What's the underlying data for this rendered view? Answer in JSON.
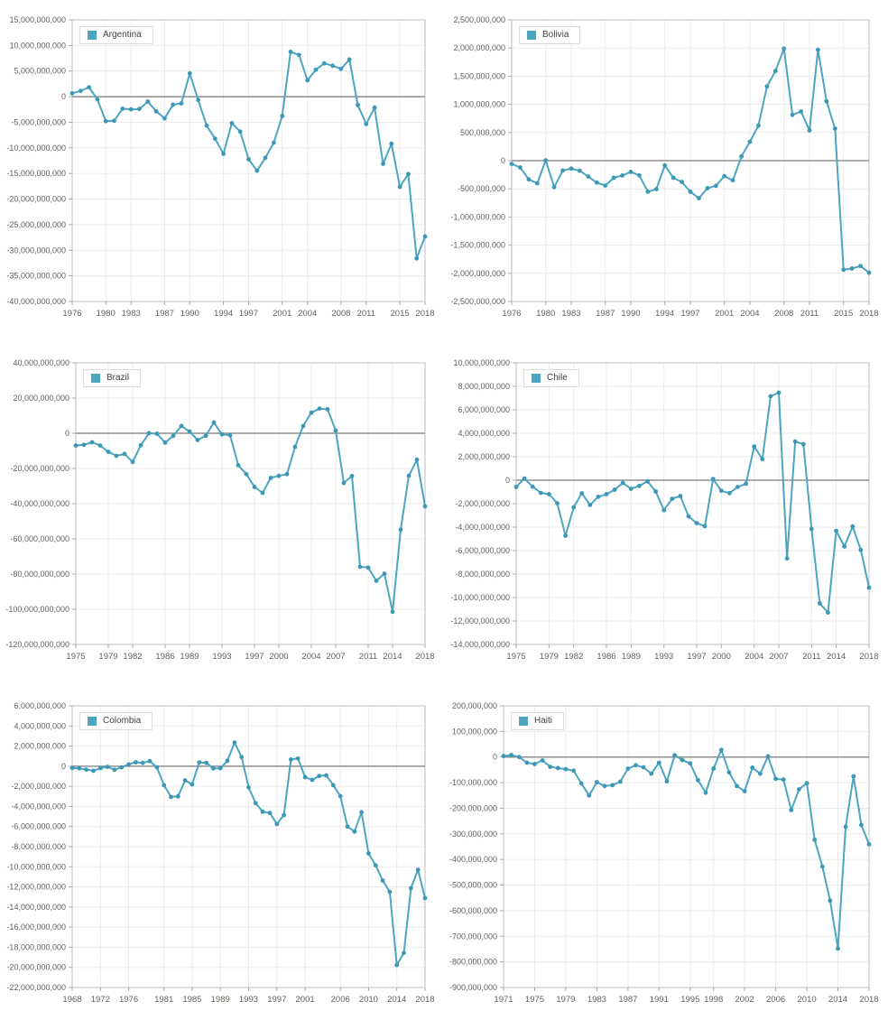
{
  "page": {
    "background": "#ffffff"
  },
  "style": {
    "grid_color": "#ebebeb",
    "frame_color": "#c8c8c8",
    "zero_line_color": "#8f8f8f",
    "tick_mark_color": "#a8a8a8",
    "tick_text_color": "#63605a",
    "legend_border_color": "#dddddd"
  },
  "chart_data": [
    {
      "type": "line",
      "legend": "Argentina",
      "series_color": "#4da5c0",
      "point_color": "#3c98b5",
      "unit_multiplier": 1000000,
      "start_year": 1976,
      "end_year": 2018,
      "x_tick_years": [
        1976,
        1980,
        1983,
        1987,
        1990,
        1994,
        1997,
        2001,
        2004,
        2008,
        2011,
        2015,
        2018
      ],
      "y_min_millions": -40000,
      "y_max_millions": 15000,
      "y_step_millions": 5000,
      "values_millions": [
        650,
        1126,
        1834,
        -537,
        -4774,
        -4712,
        -2353,
        -2461,
        -2391,
        -952,
        -2859,
        -4238,
        -1572,
        -1305,
        4552,
        -647,
        -5659,
        -8206,
        -11158,
        -5175,
        -6822,
        -12213,
        -14482,
        -11943,
        -8981,
        -3780,
        8767,
        8140,
        3212,
        5274,
        6499,
        6048,
        5421,
        7254,
        -1623,
        -5340,
        -2138,
        -13124,
        -9179,
        -17622,
        -15105,
        -31598,
        -27296
      ]
    },
    {
      "type": "line",
      "legend": "Bolivia",
      "series_color": "#4da5c0",
      "point_color": "#3c98b5",
      "unit_multiplier": 1000000,
      "start_year": 1976,
      "end_year": 2018,
      "x_tick_years": [
        1976,
        1980,
        1983,
        1987,
        1990,
        1994,
        1997,
        2001,
        2004,
        2008,
        2011,
        2015,
        2018
      ],
      "y_min_millions": -2500,
      "y_max_millions": 2500,
      "y_step_millions": 500,
      "values_millions": [
        -58,
        -120,
        -332,
        -402,
        6,
        -470,
        -174,
        -141,
        -179,
        -282,
        -389,
        -443,
        -304,
        -263,
        -199,
        -262,
        -552,
        -505,
        -84,
        -303,
        -379,
        -552,
        -666,
        -488,
        -446,
        -274,
        -350,
        76,
        337,
        622,
        1318,
        1591,
        1991,
        813,
        873,
        537,
        1970,
        1054,
        570,
        -1936,
        -1915,
        -1870,
        -1990
      ]
    },
    {
      "type": "line",
      "legend": "Brazil",
      "series_color": "#4da5c0",
      "point_color": "#3c98b5",
      "unit_multiplier": 1000000,
      "start_year": 1975,
      "end_year": 2018,
      "x_tick_years": [
        1975,
        1979,
        1982,
        1986,
        1989,
        1993,
        1997,
        2000,
        2004,
        2007,
        2011,
        2014,
        2018
      ],
      "y_min_millions": -120000,
      "y_max_millions": 40000,
      "y_step_millions": 20000,
      "values_millions": [
        -6999,
        -6551,
        -5106,
        -6983,
        -10497,
        -12831,
        -11751,
        -16312,
        -6837,
        42,
        -273,
        -5323,
        -1438,
        4175,
        1033,
        -3823,
        -1450,
        6089,
        -592,
        -1153,
        -18136,
        -23248,
        -30491,
        -33829,
        -25335,
        -24225,
        -23215,
        -7637,
        4177,
        11679,
        13985,
        13643,
        1551,
        -28192,
        -24302,
        -75824,
        -76288,
        -83800,
        -79792,
        -101431,
        -54789,
        -24230,
        -15015,
        -41540
      ]
    },
    {
      "type": "line",
      "legend": "Chile",
      "series_color": "#4da5c0",
      "point_color": "#3c98b5",
      "unit_multiplier": 1000000,
      "start_year": 1975,
      "end_year": 2018,
      "x_tick_years": [
        1975,
        1979,
        1982,
        1986,
        1989,
        1993,
        1997,
        2000,
        2004,
        2007,
        2011,
        2014,
        2018
      ],
      "y_min_millions": -14000,
      "y_max_millions": 10000,
      "y_step_millions": 2000,
      "values_millions": [
        -575,
        148,
        -551,
        -1088,
        -1189,
        -1971,
        -4733,
        -2304,
        -1117,
        -2111,
        -1413,
        -1191,
        -808,
        -231,
        -740,
        -485,
        -99,
        -958,
        -2553,
        -1585,
        -1345,
        -3083,
        -3660,
        -3918,
        99,
        -898,
        -1100,
        -580,
        -310,
        2875,
        1797,
        7154,
        7458,
        -6670,
        3293,
        3069,
        -4143,
        -10497,
        -11277,
        -4317,
        -5651,
        -3939,
        -5949,
        -9157
      ]
    },
    {
      "type": "line",
      "legend": "Colombia",
      "series_color": "#4da5c0",
      "point_color": "#3c98b5",
      "unit_multiplier": 1000000,
      "start_year": 1968,
      "end_year": 2018,
      "x_tick_years": [
        1968,
        1972,
        1976,
        1981,
        1985,
        1989,
        1993,
        1997,
        2001,
        2006,
        2010,
        2014,
        2018
      ],
      "y_min_millions": -22000,
      "y_max_millions": 6000,
      "y_step_millions": 2000,
      "values_millions": [
        -174,
        -211,
        -333,
        -454,
        -191,
        -56,
        -350,
        -109,
        188,
        390,
        330,
        512,
        -104,
        -1888,
        -3054,
        -3003,
        -1401,
        -1809,
        383,
        336,
        -216,
        -201,
        544,
        2347,
        912,
        -2102,
        -3675,
        -4528,
        -4642,
        -5751,
        -4858,
        671,
        764,
        -1088,
        -1358,
        -974,
        -909,
        -1886,
        -2983,
        -6001,
        -6501,
        -4576,
        -8663,
        -9854,
        -11364,
        -12501,
        -19764,
        -18564,
        -12129,
        -10296,
        -13118
      ]
    },
    {
      "type": "line",
      "legend": "Haiti",
      "series_color": "#4da5c0",
      "point_color": "#3c98b5",
      "unit_multiplier": 1000000,
      "start_year": 1971,
      "end_year": 2018,
      "x_tick_years": [
        1971,
        1975,
        1979,
        1983,
        1987,
        1991,
        1995,
        1998,
        2002,
        2006,
        2010,
        2014,
        2018
      ],
      "y_min_millions": -900,
      "y_max_millions": 200,
      "y_step_millions": 100,
      "values_millions": [
        4,
        8,
        0,
        -22,
        -27,
        -13,
        -38,
        -43,
        -47,
        -53,
        -103,
        -150,
        -98,
        -113,
        -110,
        -96,
        -45,
        -32,
        -40,
        -65,
        -22,
        -95,
        7,
        -12,
        -25,
        -90,
        -139,
        -45,
        28,
        -60,
        -113,
        -133,
        -41,
        -65,
        3,
        -85,
        -88,
        -207,
        -126,
        -102,
        -323,
        -428,
        -561,
        -748,
        -272,
        -75,
        -265,
        -341
      ]
    }
  ]
}
